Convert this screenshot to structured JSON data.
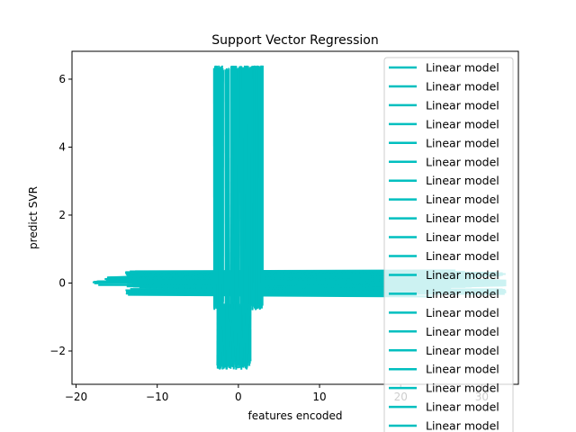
{
  "chart_data": {
    "type": "line",
    "title": "Support Vector Regression",
    "xlabel": "features encoded",
    "ylabel": "predict SVR",
    "xlim": [
      -20.5,
      34.5
    ],
    "ylim": [
      -2.98,
      6.82
    ],
    "xticks": [
      -20,
      -10,
      0,
      10,
      20,
      30
    ],
    "yticks": [
      -2,
      0,
      2,
      4,
      6
    ],
    "xtick_labels": [
      "−20",
      "−10",
      "0",
      "10",
      "20",
      "30"
    ],
    "ytick_labels": [
      "−2",
      "0",
      "2",
      "4",
      "6"
    ],
    "series_color": "#00bfbf",
    "legend_position": "right",
    "legend_entries": [
      "Linear model",
      "Linear model",
      "Linear model",
      "Linear model",
      "Linear model",
      "Linear model",
      "Linear model",
      "Linear model",
      "Linear model",
      "Linear model",
      "Linear model",
      "Linear model",
      "Linear model",
      "Linear model",
      "Linear model",
      "Linear model",
      "Linear model",
      "Linear model",
      "Linear model",
      "Linear model"
    ],
    "series": [
      {
        "values_description_points": [
          [
            -2.8,
            6.4
          ],
          [
            -2.4,
            6.4
          ],
          [
            -2.0,
            6.4
          ],
          [
            2.0,
            6.4
          ],
          [
            2.8,
            6.4
          ],
          [
            3.0,
            6.4
          ]
        ]
      },
      {
        "vertical_band": {
          "x": [
            -3.0,
            3.0
          ],
          "y": [
            -0.8,
            6.4
          ]
        }
      },
      {
        "vertical_band": {
          "x": [
            -2.6,
            1.5
          ],
          "y": [
            -2.55,
            -0.6
          ]
        }
      },
      {
        "horizontal_line": {
          "x": [
            -18.0,
            33.0
          ],
          "y": 0.0
        }
      },
      {
        "horizontal_line": {
          "x": [
            -14.0,
            33.0
          ],
          "y": 0.25
        }
      },
      {
        "horizontal_line": {
          "x": [
            -13.0,
            33.0
          ],
          "y": -0.25
        }
      },
      {
        "horizontal_line": {
          "x": [
            -16.5,
            -12.0
          ],
          "y": 0.12
        }
      },
      {
        "horizontal_line": {
          "x": [
            15.5,
            28.0
          ],
          "y": 0.3
        }
      }
    ]
  }
}
